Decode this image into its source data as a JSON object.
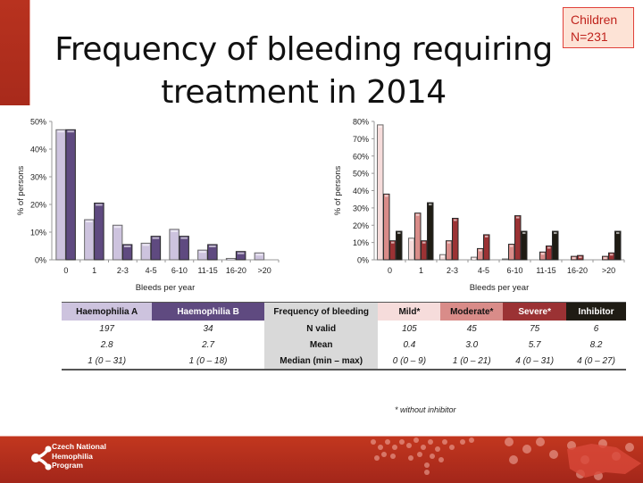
{
  "slide": {
    "title_line1": "Frequency of bleeding requiring",
    "title_line2": "treatment in 2014",
    "badge_line1": "Children",
    "badge_line2": "N=231",
    "footnote": "* without inhibitor",
    "logo_line1": "Czech National",
    "logo_line2": "Hemophilia",
    "logo_line3": "Program"
  },
  "chart_data": [
    {
      "type": "bar",
      "title": "",
      "xlabel": "Bleeds per year",
      "ylabel": "% of persons",
      "ylim": [
        0,
        50
      ],
      "yticks": [
        "0%",
        "10%",
        "20%",
        "30%",
        "40%",
        "50%"
      ],
      "ytick_values": [
        0,
        10,
        20,
        30,
        40,
        50
      ],
      "categories": [
        "0",
        "1",
        "2-3",
        "4-5",
        "6-10",
        "11-15",
        "16-20",
        ">20"
      ],
      "grid": false,
      "series": [
        {
          "name": "Haemophilia A",
          "color": "#cdc3de",
          "values": [
            47,
            14.5,
            12.5,
            6,
            11,
            3.5,
            0.5,
            2.5
          ]
        },
        {
          "name": "Haemophilia B",
          "color": "#5f4a80",
          "values": [
            47,
            20.5,
            5.5,
            8.5,
            8.5,
            5.5,
            3,
            0
          ]
        }
      ]
    },
    {
      "type": "bar",
      "title": "",
      "xlabel": "Bleeds per year",
      "ylabel": "% of persons",
      "ylim": [
        0,
        80
      ],
      "yticks": [
        "0%",
        "10%",
        "20%",
        "30%",
        "40%",
        "50%",
        "60%",
        "70%",
        "80%"
      ],
      "ytick_values": [
        0,
        10,
        20,
        30,
        40,
        50,
        60,
        70,
        80
      ],
      "categories": [
        "0",
        "1",
        "2-3",
        "4-5",
        "6-10",
        "11-15",
        "16-20",
        ">20"
      ],
      "grid": false,
      "series": [
        {
          "name": "Mild*",
          "color": "#f6dcdb",
          "values": [
            78,
            12.5,
            3,
            1.5,
            0.5,
            0,
            0,
            0
          ]
        },
        {
          "name": "Moderate*",
          "color": "#d98c89",
          "values": [
            38,
            27,
            11,
            6.5,
            9,
            4.5,
            2,
            2
          ]
        },
        {
          "name": "Severe*",
          "color": "#9b3234",
          "values": [
            11,
            11,
            24,
            14.5,
            25.5,
            8,
            2.5,
            4
          ]
        },
        {
          "name": "Inhibitor",
          "color": "#1f1c14",
          "values": [
            16.5,
            33,
            0,
            0,
            16.5,
            16.5,
            0,
            16.5
          ]
        }
      ]
    }
  ],
  "table": {
    "headers": [
      {
        "label": "Haemophilia A",
        "bg": "#cdc3de",
        "fg": "#111111"
      },
      {
        "label": "Haemophilia B",
        "bg": "#5f4a80",
        "fg": "#ffffff"
      },
      {
        "label": "Frequency of bleeding",
        "bg": "#d9d9d9",
        "fg": "#111111"
      },
      {
        "label": "Mild*",
        "bg": "#f6dcdb",
        "fg": "#111111"
      },
      {
        "label": "Moderate*",
        "bg": "#d98c89",
        "fg": "#111111"
      },
      {
        "label": "Severe*",
        "bg": "#9b3234",
        "fg": "#ffffff"
      },
      {
        "label": "Inhibitor",
        "bg": "#1f1c14",
        "fg": "#ffffff"
      }
    ],
    "rows": [
      {
        "a": "197",
        "b": "34",
        "label": "N valid",
        "mild": "105",
        "moderate": "45",
        "severe": "75",
        "inhibitor": "6"
      },
      {
        "a": "2.8",
        "b": "2.7",
        "label": "Mean",
        "mild": "0.4",
        "moderate": "3.0",
        "severe": "5.7",
        "inhibitor": "8.2"
      },
      {
        "a": "1 (0 – 31)",
        "b": "1 (0 – 18)",
        "label": "Median (min – max)",
        "mild": "0 (0 – 9)",
        "moderate": "1 (0 – 21)",
        "severe": "4 (0 – 31)",
        "inhibitor": "4 (0 – 27)"
      }
    ]
  }
}
